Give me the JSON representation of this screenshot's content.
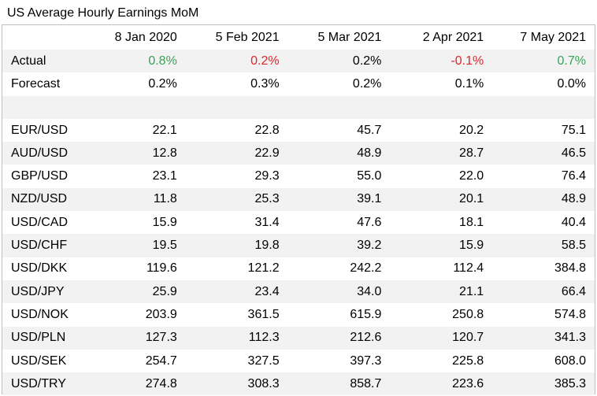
{
  "title": "US Average Hourly Earnings MoM",
  "columns": [
    "8 Jan 2020",
    "5 Feb 2021",
    "5 Mar 2021",
    "2 Apr 2021",
    "7 May 2021"
  ],
  "actual": {
    "label": "Actual",
    "values": [
      "0.8%",
      "0.2%",
      "0.2%",
      "-0.1%",
      "0.7%"
    ],
    "colors": [
      "pos",
      "neg",
      "",
      "neg",
      "pos"
    ]
  },
  "forecast": {
    "label": "Forecast",
    "values": [
      "0.2%",
      "0.3%",
      "0.2%",
      "0.1%",
      "0.0%"
    ]
  },
  "pairs": [
    {
      "label": "EUR/USD",
      "values": [
        "22.1",
        "22.8",
        "45.7",
        "20.2",
        "75.1"
      ]
    },
    {
      "label": "AUD/USD",
      "values": [
        "12.8",
        "22.9",
        "48.9",
        "28.7",
        "46.5"
      ]
    },
    {
      "label": "GBP/USD",
      "values": [
        "23.1",
        "29.3",
        "55.0",
        "22.0",
        "76.4"
      ]
    },
    {
      "label": "NZD/USD",
      "values": [
        "11.8",
        "25.3",
        "39.1",
        "20.1",
        "48.9"
      ]
    },
    {
      "label": "USD/CAD",
      "values": [
        "15.9",
        "31.4",
        "47.6",
        "18.1",
        "40.4"
      ]
    },
    {
      "label": "USD/CHF",
      "values": [
        "19.5",
        "19.8",
        "39.2",
        "15.9",
        "58.5"
      ]
    },
    {
      "label": "USD/DKK",
      "values": [
        "119.6",
        "121.2",
        "242.2",
        "112.4",
        "384.8"
      ]
    },
    {
      "label": "USD/JPY",
      "values": [
        "25.9",
        "23.4",
        "34.0",
        "21.1",
        "66.4"
      ]
    },
    {
      "label": "USD/NOK",
      "values": [
        "203.9",
        "361.5",
        "615.9",
        "250.8",
        "574.8"
      ]
    },
    {
      "label": "USD/PLN",
      "values": [
        "127.3",
        "112.3",
        "212.6",
        "120.7",
        "341.3"
      ]
    },
    {
      "label": "USD/SEK",
      "values": [
        "254.7",
        "327.5",
        "397.3",
        "225.8",
        "608.0"
      ]
    },
    {
      "label": "USD/TRY",
      "values": [
        "274.8",
        "308.3",
        "858.7",
        "223.6",
        "385.3"
      ]
    }
  ],
  "colors": {
    "positive": "#3aa357",
    "negative": "#e0242a",
    "shade": "#f2f2f2",
    "border": "#bfbfbf"
  }
}
